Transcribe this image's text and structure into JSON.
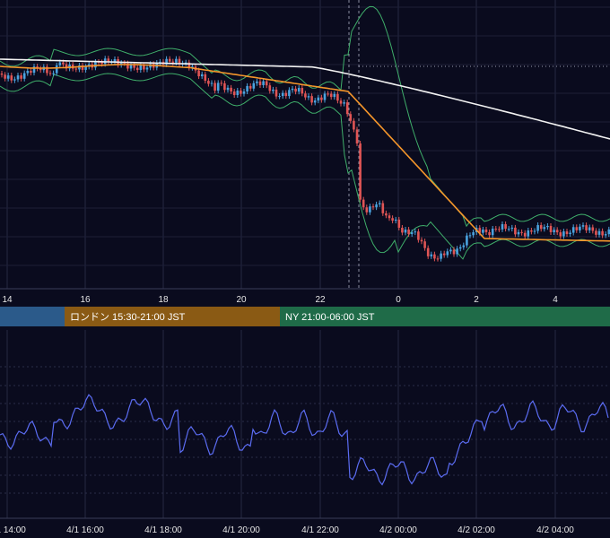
{
  "chart_data": [
    {
      "type": "candlestick",
      "title": "",
      "xlabel": "",
      "ylabel": "",
      "x_tick_labels": [
        "14",
        "16",
        "18",
        "20",
        "22",
        "0",
        "2",
        "4"
      ],
      "grid": true,
      "indicators": [
        "Bollinger Bands",
        "moving average (orange)",
        "moving average (white)"
      ],
      "colors": {
        "up": "#4aa3df",
        "down": "#e05555",
        "bollinger": "#3fae6a",
        "ma_short": "#f5962b",
        "ma_long": "#f2f2f2",
        "background": "#0a0b1e"
      },
      "series": [
        {
          "name": "",
          "values": []
        }
      ]
    },
    {
      "type": "line",
      "title": "",
      "xlabel": "",
      "ylabel": "",
      "x_tick_labels": [
        "4/1 14:00",
        "4/1 16:00",
        "4/1 18:00",
        "4/1 20:00",
        "4/1 22:00",
        "4/2 00:00",
        "4/2 02:00",
        "4/2 04:00"
      ],
      "grid": true,
      "colors": {
        "line": "#5b6cf2"
      },
      "series": [
        {
          "name": "",
          "values": []
        }
      ]
    }
  ],
  "sessions": [
    {
      "label": "",
      "color": "#2b5a8a"
    },
    {
      "label": "ロンドン 15:30-21:00 JST",
      "color": "#8a5a14"
    },
    {
      "label": "NY 21:00-06:00 JST",
      "color": "#1f6b48"
    }
  ]
}
